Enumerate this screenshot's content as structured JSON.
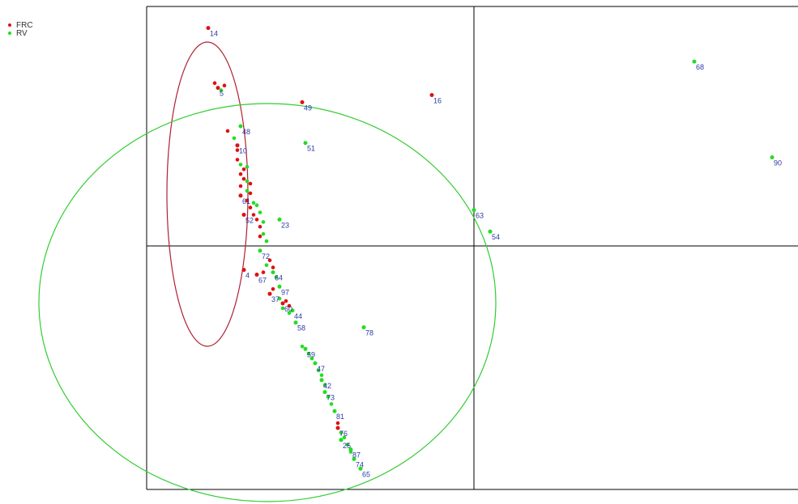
{
  "legend": {
    "items": [
      {
        "label": "FRC",
        "color": "#e01010"
      },
      {
        "label": "RV",
        "color": "#22dd22"
      }
    ]
  },
  "colors": {
    "ellipse_frc": "#b02030",
    "ellipse_rv": "#33cc33",
    "label": "#2b3aa8",
    "axis": "#000000"
  },
  "chart_data": {
    "type": "scatter",
    "title": "",
    "xlabel": "",
    "ylabel": "",
    "xlim": [
      -1,
      1
    ],
    "ylim": [
      -1,
      1
    ],
    "grid": false,
    "legend_position": "top-left",
    "series": [
      {
        "name": "FRC",
        "color": "#e01010",
        "points": [
          {
            "label": "14",
            "x": -0.82,
            "y": 0.91
          },
          {
            "label": "5",
            "x": -0.79,
            "y": 0.66
          },
          {
            "label": "49",
            "x": -0.53,
            "y": 0.6
          },
          {
            "label": "16",
            "x": -0.13,
            "y": 0.63
          },
          {
            "label": "10",
            "x": -0.73,
            "y": 0.42
          },
          {
            "label": "61",
            "x": -0.72,
            "y": 0.21
          },
          {
            "label": "52",
            "x": -0.71,
            "y": 0.13
          },
          {
            "label": "4",
            "x": -0.71,
            "y": -0.1
          },
          {
            "label": "67",
            "x": -0.67,
            "y": -0.12
          },
          {
            "label": "37",
            "x": -0.63,
            "y": -0.2
          },
          {
            "label": "60",
            "x": -0.59,
            "y": -0.24
          },
          {
            "label": "76",
            "x": -0.42,
            "y": -0.76
          }
        ]
      },
      {
        "name": "RV",
        "color": "#22dd22",
        "points": [
          {
            "label": "68",
            "x": 0.68,
            "y": 0.77
          },
          {
            "label": "90",
            "x": 0.92,
            "y": 0.37
          },
          {
            "label": "51",
            "x": -0.52,
            "y": 0.43
          },
          {
            "label": "63",
            "x": 0.0,
            "y": 0.15
          },
          {
            "label": "54",
            "x": 0.05,
            "y": 0.06
          },
          {
            "label": "78",
            "x": -0.34,
            "y": -0.34
          },
          {
            "label": "48",
            "x": -0.72,
            "y": 0.5
          },
          {
            "label": "23",
            "x": -0.6,
            "y": 0.11
          },
          {
            "label": "72",
            "x": -0.66,
            "y": -0.02
          },
          {
            "label": "64",
            "x": -0.62,
            "y": -0.11
          },
          {
            "label": "97",
            "x": -0.6,
            "y": -0.17
          },
          {
            "label": "44",
            "x": -0.56,
            "y": -0.27
          },
          {
            "label": "58",
            "x": -0.55,
            "y": -0.32
          },
          {
            "label": "59",
            "x": -0.52,
            "y": -0.43
          },
          {
            "label": "47",
            "x": -0.49,
            "y": -0.49
          },
          {
            "label": "42",
            "x": -0.47,
            "y": -0.56
          },
          {
            "label": "73",
            "x": -0.46,
            "y": -0.61
          },
          {
            "label": "81",
            "x": -0.43,
            "y": -0.69
          },
          {
            "label": "25",
            "x": -0.41,
            "y": -0.81
          },
          {
            "label": "87",
            "x": -0.38,
            "y": -0.85
          },
          {
            "label": "74",
            "x": -0.37,
            "y": -0.89
          },
          {
            "label": "65",
            "x": -0.35,
            "y": -0.93
          }
        ]
      }
    ]
  }
}
